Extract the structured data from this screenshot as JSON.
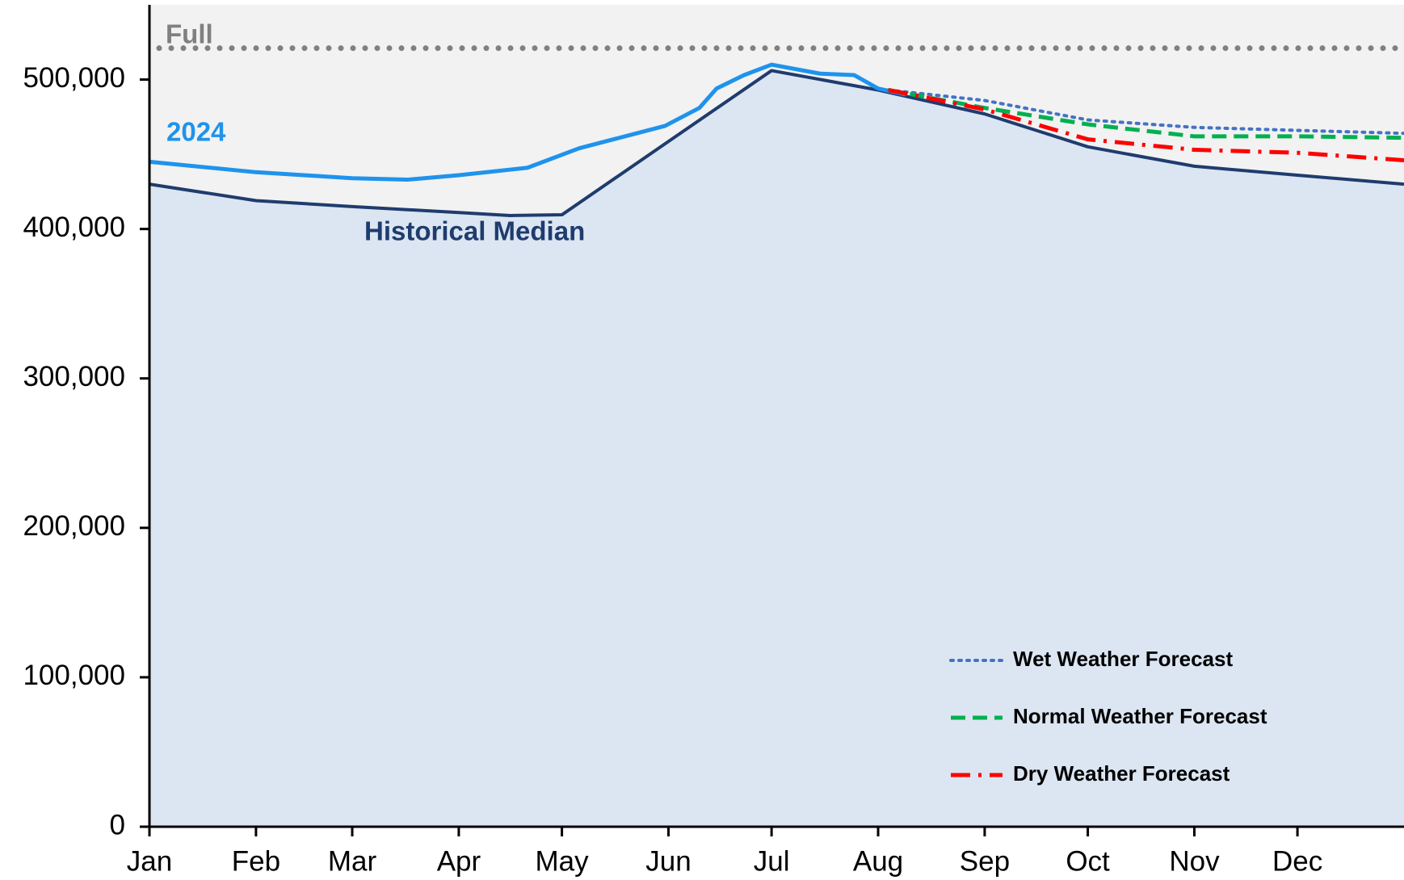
{
  "chart_data": {
    "type": "line",
    "x_unit": "day of year",
    "xlim": [
      0,
      365
    ],
    "xticks": [
      {
        "value": 0,
        "label": "Jan"
      },
      {
        "value": 31,
        "label": "Feb"
      },
      {
        "value": 59,
        "label": "Mar"
      },
      {
        "value": 90,
        "label": "Apr"
      },
      {
        "value": 120,
        "label": "May"
      },
      {
        "value": 151,
        "label": "Jun"
      },
      {
        "value": 181,
        "label": "Jul"
      },
      {
        "value": 212,
        "label": "Aug"
      },
      {
        "value": 243,
        "label": "Sep"
      },
      {
        "value": 273,
        "label": "Oct"
      },
      {
        "value": 304,
        "label": "Nov"
      },
      {
        "value": 334,
        "label": "Dec"
      }
    ],
    "ylim": [
      0,
      550000
    ],
    "yticks": [
      0,
      {
        "value": 100000,
        "label": "100,000"
      },
      {
        "value": 200000,
        "label": "200,000"
      },
      {
        "value": 300000,
        "label": "300,000"
      },
      {
        "value": 400000,
        "label": "400,000"
      },
      {
        "value": 500000,
        "label": "500,000"
      }
    ],
    "reference_lines": [
      {
        "name": "Full",
        "value": 521000,
        "color": "#808080",
        "style": "dotted"
      }
    ],
    "series": [
      {
        "name": "Historical Median",
        "color": "#1f3c6e",
        "style": "solid",
        "fill": "#dce6f2",
        "legend": false,
        "x": [
          0,
          31,
          59,
          90,
          105,
          120,
          150,
          181,
          212,
          243,
          273,
          304,
          334,
          365
        ],
        "values": [
          430000,
          419000,
          415000,
          411000,
          409000,
          409500,
          457000,
          506000,
          493000,
          477000,
          455000,
          442000,
          436000,
          430000
        ]
      },
      {
        "name": "2024",
        "color": "#1f93ec",
        "style": "solid",
        "legend": false,
        "x": [
          0,
          31,
          59,
          75,
          90,
          110,
          125,
          140,
          150,
          160,
          165,
          173,
          181,
          195,
          205,
          212,
          220
        ],
        "values": [
          445000,
          438000,
          434000,
          433000,
          436000,
          441000,
          454000,
          463000,
          469000,
          481000,
          494000,
          503000,
          510000,
          504000,
          503000,
          494000,
          490000
        ]
      },
      {
        "name": "Wet Weather Forecast",
        "color": "#4472c4",
        "style": "dotted",
        "legend": true,
        "x": [
          215,
          243,
          273,
          304,
          334,
          365
        ],
        "values": [
          493000,
          486000,
          473000,
          468000,
          466000,
          464000
        ]
      },
      {
        "name": "Normal Weather Forecast",
        "color": "#00b050",
        "style": "dashed",
        "legend": true,
        "x": [
          215,
          243,
          273,
          304,
          334,
          365
        ],
        "values": [
          493000,
          481000,
          470000,
          462000,
          462000,
          461000
        ]
      },
      {
        "name": "Dry Weather Forecast",
        "color": "#ff0000",
        "style": "dashdot",
        "legend": true,
        "x": [
          215,
          243,
          273,
          304,
          334,
          365
        ],
        "values": [
          493000,
          480000,
          460000,
          453000,
          451000,
          446000
        ]
      }
    ]
  }
}
